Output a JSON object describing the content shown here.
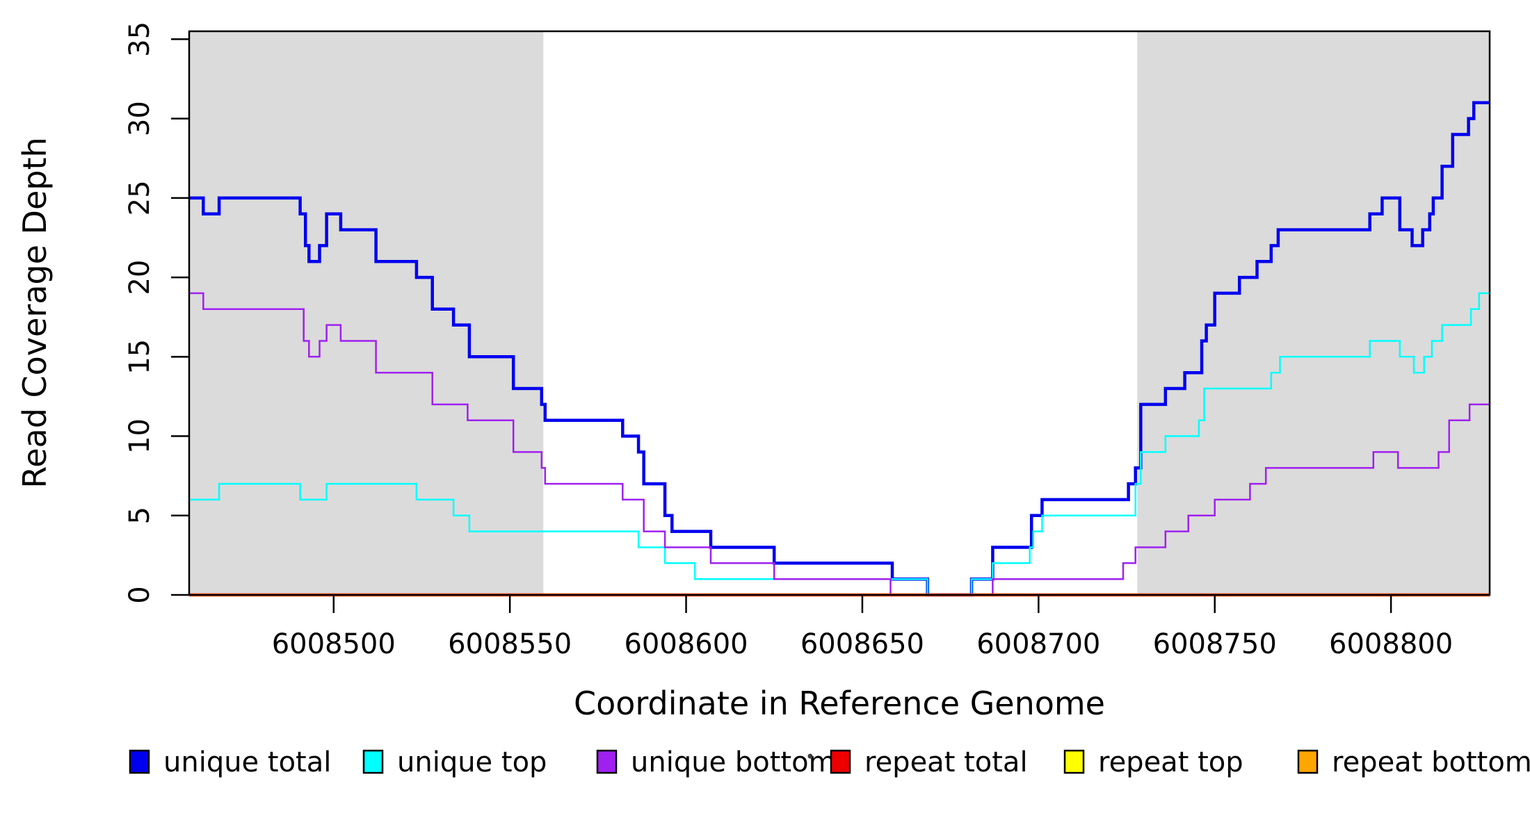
{
  "chart_data": {
    "type": "line",
    "subtype": "step-after",
    "title": "",
    "xlabel": "Coordinate in Reference Genome",
    "ylabel": "Read Coverage Depth",
    "xlim": [
      6008459,
      6008828
    ],
    "ylim": [
      0,
      35.5
    ],
    "xticks": [
      6008500,
      6008550,
      6008600,
      6008650,
      6008700,
      6008750,
      6008800
    ],
    "yticks": [
      0,
      5,
      10,
      15,
      20,
      25,
      30,
      35
    ],
    "grid": false,
    "legend_position": "bottom",
    "shaded_regions": [
      {
        "x0": 6008459,
        "x1": 6008559.5,
        "color": "#DBDBDB"
      },
      {
        "x0": 6008728,
        "x1": 6008828,
        "color": "#DBDBDB"
      }
    ],
    "series": [
      {
        "name": "unique total",
        "color": "#0000EE",
        "width": 4.5,
        "steps": [
          [
            6008459,
            25
          ],
          [
            6008463,
            24
          ],
          [
            6008467.5,
            25
          ],
          [
            6008490.5,
            24
          ],
          [
            6008492,
            22
          ],
          [
            6008493,
            21
          ],
          [
            6008496,
            22
          ],
          [
            6008498,
            24
          ],
          [
            6008502,
            23
          ],
          [
            6008512,
            21
          ],
          [
            6008523.5,
            20
          ],
          [
            6008528,
            18
          ],
          [
            6008534,
            17
          ],
          [
            6008538.5,
            15
          ],
          [
            6008551,
            13
          ],
          [
            6008559,
            12
          ],
          [
            6008560,
            11
          ],
          [
            6008582,
            10
          ],
          [
            6008586.5,
            9
          ],
          [
            6008588,
            7
          ],
          [
            6008594,
            5
          ],
          [
            6008596,
            4
          ],
          [
            6008607,
            3
          ],
          [
            6008625,
            2
          ],
          [
            6008658.5,
            1
          ],
          [
            6008668.5,
            0
          ],
          [
            6008681,
            1
          ],
          [
            6008687,
            3
          ],
          [
            6008698,
            5
          ],
          [
            6008701,
            6
          ],
          [
            6008725.5,
            7
          ],
          [
            6008727.5,
            8
          ],
          [
            6008729,
            12
          ],
          [
            6008736,
            13
          ],
          [
            6008741.5,
            14
          ],
          [
            6008746.3,
            16
          ],
          [
            6008747.6,
            17
          ],
          [
            6008750,
            19
          ],
          [
            6008757,
            20
          ],
          [
            6008762,
            21
          ],
          [
            6008766,
            22
          ],
          [
            6008768,
            23
          ],
          [
            6008794,
            24
          ],
          [
            6008797.5,
            25
          ],
          [
            6008802.5,
            23
          ],
          [
            6008806,
            22
          ],
          [
            6008809,
            23
          ],
          [
            6008811,
            24
          ],
          [
            6008812,
            25
          ],
          [
            6008814.5,
            27
          ],
          [
            6008817.5,
            29
          ],
          [
            6008822,
            30
          ],
          [
            6008823.5,
            31
          ],
          [
            6008828,
            31
          ]
        ]
      },
      {
        "name": "unique top",
        "color": "#00FFFF",
        "width": 2.5,
        "steps": [
          [
            6008459,
            6
          ],
          [
            6008467.5,
            7
          ],
          [
            6008490.5,
            6
          ],
          [
            6008498,
            7
          ],
          [
            6008523.5,
            6
          ],
          [
            6008534,
            5
          ],
          [
            6008538.5,
            4
          ],
          [
            6008586.5,
            3
          ],
          [
            6008594,
            2
          ],
          [
            6008602.5,
            1
          ],
          [
            6008668.5,
            0
          ],
          [
            6008681,
            1
          ],
          [
            6008687,
            2
          ],
          [
            6008697.5,
            3
          ],
          [
            6008698.5,
            4
          ],
          [
            6008701,
            5
          ],
          [
            6008727.5,
            7
          ],
          [
            6008729,
            9
          ],
          [
            6008736,
            10
          ],
          [
            6008745.5,
            11
          ],
          [
            6008747,
            13
          ],
          [
            6008766,
            14
          ],
          [
            6008768.5,
            15
          ],
          [
            6008794,
            16
          ],
          [
            6008802.5,
            15
          ],
          [
            6008806.5,
            14
          ],
          [
            6008809.4,
            15
          ],
          [
            6008811.6,
            16
          ],
          [
            6008814.5,
            17
          ],
          [
            6008822.7,
            18
          ],
          [
            6008825,
            19
          ],
          [
            6008828,
            19
          ]
        ]
      },
      {
        "name": "unique bottom",
        "color": "#A020F0",
        "width": 2.5,
        "steps": [
          [
            6008459,
            19
          ],
          [
            6008463,
            18
          ],
          [
            6008491.5,
            16
          ],
          [
            6008493,
            15
          ],
          [
            6008496,
            16
          ],
          [
            6008498,
            17
          ],
          [
            6008502,
            16
          ],
          [
            6008512,
            14
          ],
          [
            6008528,
            12
          ],
          [
            6008538,
            11
          ],
          [
            6008551,
            9
          ],
          [
            6008559,
            8
          ],
          [
            6008560,
            7
          ],
          [
            6008582,
            6
          ],
          [
            6008588,
            4
          ],
          [
            6008594,
            3
          ],
          [
            6008607,
            2
          ],
          [
            6008625,
            1
          ],
          [
            6008658,
            0
          ],
          [
            6008687,
            1
          ],
          [
            6008724,
            2
          ],
          [
            6008727.5,
            3
          ],
          [
            6008736,
            4
          ],
          [
            6008742.5,
            5
          ],
          [
            6008750,
            6
          ],
          [
            6008760,
            7
          ],
          [
            6008764.5,
            8
          ],
          [
            6008795,
            9
          ],
          [
            6008802,
            8
          ],
          [
            6008813.5,
            9
          ],
          [
            6008816.5,
            11
          ],
          [
            6008822.3,
            12
          ],
          [
            6008828,
            12
          ]
        ]
      },
      {
        "name": "repeat total",
        "color": "#EE0000",
        "width": 4.5,
        "steps": [
          [
            6008459,
            0
          ],
          [
            6008828,
            0
          ]
        ]
      },
      {
        "name": "repeat top",
        "color": "#FFFF00",
        "width": 2.5,
        "steps": [
          [
            6008459,
            0
          ],
          [
            6008828,
            0
          ]
        ]
      },
      {
        "name": "repeat bottom",
        "color": "#FFA500",
        "width": 3.2,
        "steps": [
          [
            6008459,
            0
          ],
          [
            6008828,
            0
          ]
        ]
      }
    ]
  },
  "axes": {
    "ylabel": "Read Coverage Depth",
    "xlabel": "Coordinate in Reference Genome"
  },
  "legend": {
    "items": [
      {
        "label": "unique total",
        "color": "#0000EE"
      },
      {
        "label": "unique top",
        "color": "#00FFFF"
      },
      {
        "label": "unique bottom",
        "color": "#A020F0"
      },
      {
        "label": "repeat total",
        "color": "#EE0000"
      },
      {
        "label": "repeat top",
        "color": "#FFFF00"
      },
      {
        "label": "repeat bottom",
        "color": "#FFA500"
      }
    ]
  }
}
